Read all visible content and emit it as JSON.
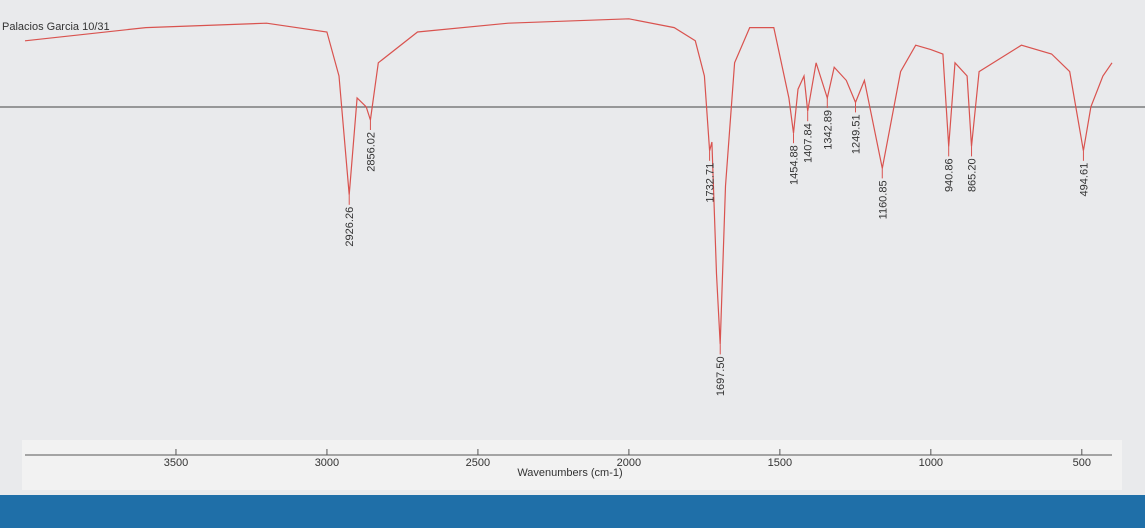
{
  "chart_data": {
    "type": "line",
    "title": "Palacios Garcia 10/31",
    "x_label": "Wavenumbers (cm-1)",
    "color": "#d9534f",
    "xlim": [
      4000,
      400
    ],
    "xticks": [
      3500,
      3000,
      2500,
      2000,
      1500,
      1000,
      500
    ],
    "ylim": [
      0,
      100
    ],
    "x": [
      4000,
      3600,
      3200,
      3000,
      2960,
      2926.26,
      2900,
      2870,
      2856.02,
      2830,
      2700,
      2400,
      2000,
      1850,
      1780,
      1750,
      1732.71,
      1725,
      1710,
      1697.5,
      1680,
      1650,
      1600,
      1520,
      1470,
      1454.88,
      1440,
      1420,
      1407.84,
      1380,
      1342.89,
      1320,
      1280,
      1249.51,
      1220,
      1160.85,
      1100,
      1050,
      1000,
      960,
      940.86,
      920,
      880,
      865.2,
      840,
      700,
      600,
      540,
      494.61,
      470,
      430,
      400
    ],
    "values": [
      93,
      96,
      97,
      95,
      85,
      58,
      80,
      78,
      75,
      88,
      95,
      97,
      98,
      96,
      93,
      85,
      68,
      70,
      40,
      24,
      60,
      88,
      96,
      96,
      80,
      72,
      82,
      85,
      77,
      88,
      80,
      87,
      84,
      79,
      84,
      64,
      86,
      92,
      91,
      90,
      69,
      88,
      85,
      69,
      86,
      92,
      90,
      86,
      68,
      78,
      85,
      88
    ],
    "peaks": [
      2926.26,
      2856.02,
      1732.71,
      {
        "value": 1697.5,
        "label": "1697.50"
      },
      1454.88,
      1407.84,
      1342.89,
      1249.51,
      1160.85,
      940.86,
      {
        "value": 865.2,
        "label": "865.20"
      },
      494.61
    ]
  }
}
